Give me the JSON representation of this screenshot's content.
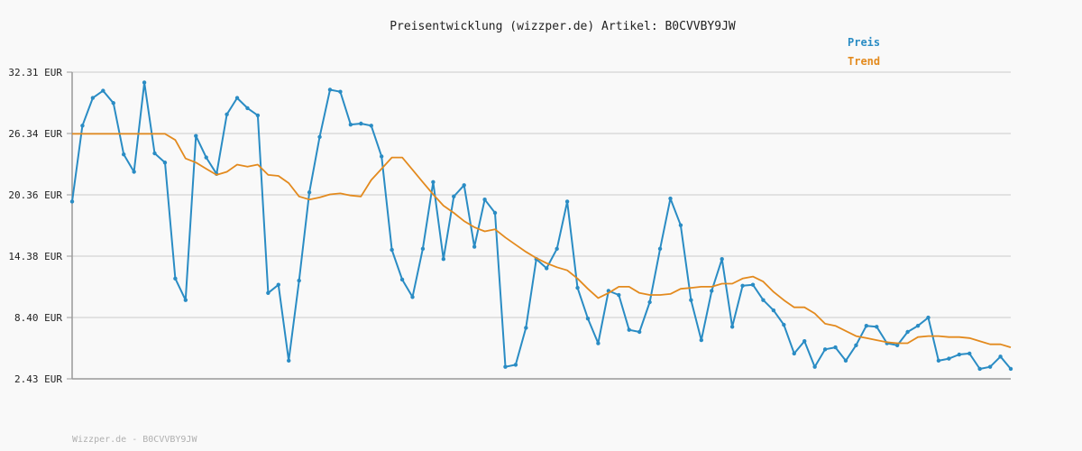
{
  "chart_data": {
    "type": "line",
    "title": "Preisentwicklung (wizzper.de) Artikel: B0CVVBY9JW",
    "xlabel": "",
    "ylabel": "",
    "ylim": [
      2.43,
      32.31
    ],
    "yticks": [
      "32.31 EUR",
      "26.34 EUR",
      "20.36 EUR",
      "14.38 EUR",
      "8.40 EUR",
      "2.43 EUR"
    ],
    "grid": true,
    "legend_position": "top-right",
    "series": [
      {
        "name": "Preis",
        "color": "#2a8cc4",
        "markers": true,
        "values": [
          19.7,
          27.1,
          29.8,
          30.5,
          29.3,
          24.3,
          22.6,
          31.3,
          24.4,
          23.5,
          12.2,
          10.1,
          26.1,
          24.0,
          22.4,
          28.2,
          29.8,
          28.8,
          28.1,
          10.8,
          11.6,
          4.2,
          12.0,
          20.6,
          26.0,
          30.6,
          30.4,
          27.2,
          27.3,
          27.1,
          24.1,
          15.0,
          12.1,
          10.4,
          15.1,
          21.6,
          14.1,
          20.2,
          21.3,
          15.3,
          19.9,
          18.6,
          3.6,
          3.8,
          7.4,
          14.1,
          13.2,
          15.1,
          19.7,
          11.3,
          8.3,
          5.9,
          11.0,
          10.6,
          7.2,
          7.0,
          9.9,
          15.1,
          20.0,
          17.4,
          10.1,
          6.2,
          11.0,
          14.1,
          7.5,
          11.5,
          11.6,
          10.1,
          9.1,
          7.7,
          4.9,
          6.1,
          3.6,
          5.3,
          5.5,
          4.2,
          5.7,
          7.6,
          7.5,
          5.9,
          5.7,
          7.0,
          7.6,
          8.4,
          4.2,
          4.4,
          4.8,
          4.9,
          3.4,
          3.6,
          4.6,
          3.4
        ]
      },
      {
        "name": "Trend",
        "color": "#e38a1e",
        "markers": false,
        "values": [
          26.3,
          26.3,
          26.3,
          26.3,
          26.3,
          26.3,
          26.3,
          26.3,
          26.3,
          26.3,
          25.7,
          23.9,
          23.5,
          22.9,
          22.3,
          22.6,
          23.3,
          23.1,
          23.3,
          22.3,
          22.2,
          21.5,
          20.2,
          19.9,
          20.1,
          20.4,
          20.5,
          20.3,
          20.2,
          21.8,
          22.9,
          24.0,
          24.0,
          22.8,
          21.6,
          20.4,
          19.3,
          18.6,
          17.8,
          17.2,
          16.8,
          17.0,
          16.2,
          15.5,
          14.8,
          14.2,
          13.7,
          13.3,
          13.0,
          12.2,
          11.2,
          10.3,
          10.8,
          11.4,
          11.4,
          10.8,
          10.6,
          10.6,
          10.7,
          11.2,
          11.3,
          11.4,
          11.4,
          11.7,
          11.7,
          12.2,
          12.4,
          11.9,
          10.9,
          10.1,
          9.4,
          9.4,
          8.8,
          7.8,
          7.6,
          7.1,
          6.6,
          6.4,
          6.2,
          6.0,
          5.9,
          5.9,
          6.5,
          6.6,
          6.6,
          6.5,
          6.5,
          6.4,
          6.1,
          5.8,
          5.8,
          5.5
        ]
      }
    ]
  },
  "footer": "Wizzper.de - B0CVVBY9JW"
}
